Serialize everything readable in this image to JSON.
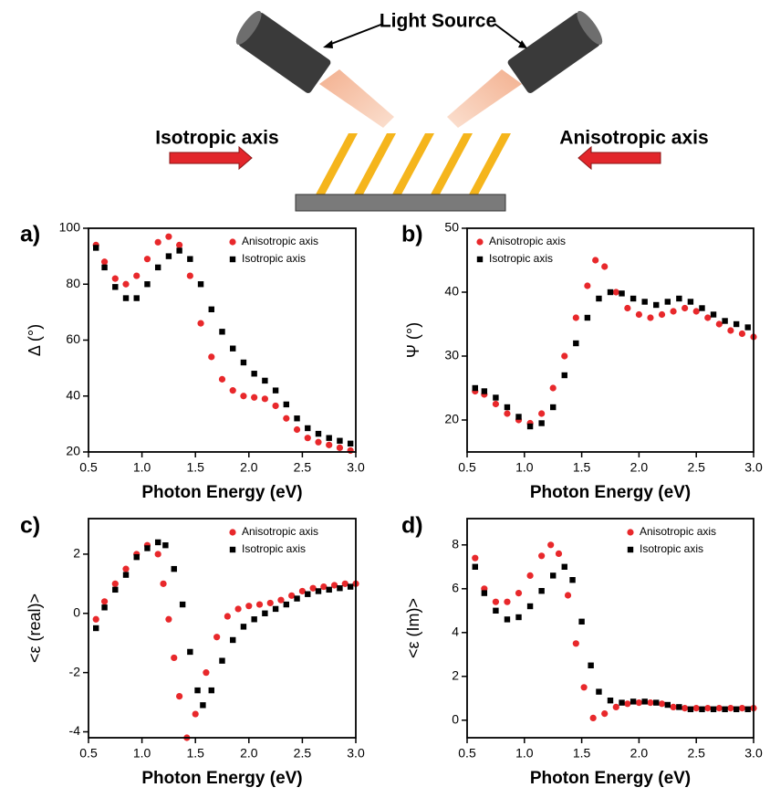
{
  "diagram": {
    "light_source": "Light Source",
    "isotropic_axis": "Isotropic axis",
    "anisotropic_axis": "Anisotropic axis"
  },
  "chart_data": [
    {
      "type": "scatter",
      "panel": "a)",
      "xlabel": "Photon Energy (eV)",
      "ylabel": "Δ (°)",
      "xlim": [
        0.5,
        3.0
      ],
      "xticks": [
        0.5,
        {
          "value": 1.0,
          "label": "1.0"
        },
        1.5,
        {
          "value": 2.0,
          "label": "2.0"
        },
        2.5,
        {
          "value": 3.0,
          "label": "3.0"
        }
      ],
      "ylim": [
        20,
        100
      ],
      "yticks": [
        20,
        40,
        60,
        80,
        100
      ],
      "legend": "upper right",
      "series": [
        {
          "name": "Anisotropic axis",
          "color": "#e8282b",
          "marker": "circle",
          "x": [
            0.57,
            0.65,
            0.75,
            0.85,
            0.95,
            1.05,
            1.15,
            1.25,
            1.35,
            1.45,
            1.55,
            1.65,
            1.75,
            1.85,
            1.95,
            2.05,
            2.15,
            2.25,
            2.35,
            2.45,
            2.55,
            2.65,
            2.75,
            2.85,
            2.95
          ],
          "values": [
            94,
            88,
            82,
            80,
            83,
            89,
            95,
            97,
            94,
            83,
            66,
            54,
            46,
            42,
            40,
            39.5,
            39,
            36.5,
            32,
            28,
            25,
            23.5,
            22.5,
            21.5,
            20.5
          ]
        },
        {
          "name": "Isotropic axis",
          "color": "#000000",
          "marker": "square",
          "x": [
            0.57,
            0.65,
            0.75,
            0.85,
            0.95,
            1.05,
            1.15,
            1.25,
            1.35,
            1.45,
            1.55,
            1.65,
            1.75,
            1.85,
            1.95,
            2.05,
            2.15,
            2.25,
            2.35,
            2.45,
            2.55,
            2.65,
            2.75,
            2.85,
            2.95
          ],
          "values": [
            93,
            86,
            79,
            75,
            75,
            80,
            86,
            90,
            92,
            89,
            80,
            71,
            63,
            57,
            52,
            48,
            45.5,
            42,
            37,
            32,
            28.5,
            26.5,
            25,
            24,
            23
          ]
        }
      ]
    },
    {
      "type": "scatter",
      "panel": "b)",
      "xlabel": "Photon Energy (eV)",
      "ylabel": "Ψ (°)",
      "xlim": [
        0.5,
        3.0
      ],
      "xticks": [
        0.5,
        {
          "value": 1.0,
          "label": "1.0"
        },
        1.5,
        {
          "value": 2.0,
          "label": "2.0"
        },
        2.5,
        {
          "value": 3.0,
          "label": "3.0"
        }
      ],
      "ylim": [
        15,
        50
      ],
      "yticks": [
        20,
        30,
        40,
        50
      ],
      "legend": "upper left",
      "series": [
        {
          "name": "Anisotropic axis",
          "color": "#e8282b",
          "marker": "circle",
          "x": [
            0.57,
            0.65,
            0.75,
            0.85,
            0.95,
            1.05,
            1.15,
            1.25,
            1.35,
            1.45,
            1.55,
            1.62,
            1.7,
            1.8,
            1.9,
            2.0,
            2.1,
            2.2,
            2.3,
            2.4,
            2.5,
            2.6,
            2.7,
            2.8,
            2.9,
            3.0
          ],
          "values": [
            24.5,
            24,
            22.5,
            21,
            20,
            19.5,
            21,
            25,
            30,
            36,
            41,
            45,
            44,
            40,
            37.5,
            36.5,
            36,
            36.5,
            37,
            37.5,
            37,
            36,
            35,
            34,
            33.5,
            33
          ]
        },
        {
          "name": "Isotropic axis",
          "color": "#000000",
          "marker": "square",
          "x": [
            0.57,
            0.65,
            0.75,
            0.85,
            0.95,
            1.05,
            1.15,
            1.25,
            1.35,
            1.45,
            1.55,
            1.65,
            1.75,
            1.85,
            1.95,
            2.05,
            2.15,
            2.25,
            2.35,
            2.45,
            2.55,
            2.65,
            2.75,
            2.85,
            2.95
          ],
          "values": [
            25,
            24.5,
            23.5,
            22,
            20.5,
            19,
            19.5,
            22,
            27,
            32,
            36,
            39,
            40,
            39.8,
            39,
            38.5,
            38,
            38.5,
            39,
            38.5,
            37.5,
            36.5,
            35.5,
            35,
            34.5
          ]
        }
      ]
    },
    {
      "type": "scatter",
      "panel": "c)",
      "xlabel": "Photon Energy (eV)",
      "ylabel": "<ε (real)>",
      "xlim": [
        0.5,
        3.0
      ],
      "xticks": [
        0.5,
        {
          "value": 1.0,
          "label": "1.0"
        },
        1.5,
        {
          "value": 2.0,
          "label": "2.0"
        },
        2.5,
        {
          "value": 3.0,
          "label": "3.0"
        }
      ],
      "ylim": [
        -4.2,
        3.2
      ],
      "yticks": [
        -4,
        -2,
        0,
        2
      ],
      "legend": "upper right",
      "series": [
        {
          "name": "Anisotropic axis",
          "color": "#e8282b",
          "marker": "circle",
          "x": [
            0.57,
            0.65,
            0.75,
            0.85,
            0.95,
            1.05,
            1.15,
            1.2,
            1.25,
            1.3,
            1.35,
            1.42,
            1.5,
            1.6,
            1.7,
            1.8,
            1.9,
            2.0,
            2.1,
            2.2,
            2.3,
            2.4,
            2.5,
            2.6,
            2.7,
            2.8,
            2.9,
            3.0
          ],
          "values": [
            -0.2,
            0.4,
            1.0,
            1.5,
            2.0,
            2.3,
            2.0,
            1.0,
            -0.2,
            -1.5,
            -2.8,
            -4.2,
            -3.4,
            -2.0,
            -0.8,
            -0.1,
            0.15,
            0.25,
            0.3,
            0.35,
            0.45,
            0.6,
            0.75,
            0.85,
            0.9,
            0.95,
            1.0,
            1.0
          ]
        },
        {
          "name": "Isotropic axis",
          "color": "#000000",
          "marker": "square",
          "x": [
            0.57,
            0.65,
            0.75,
            0.85,
            0.95,
            1.05,
            1.15,
            1.22,
            1.3,
            1.38,
            1.45,
            1.52,
            1.57,
            1.65,
            1.75,
            1.85,
            1.95,
            2.05,
            2.15,
            2.25,
            2.35,
            2.45,
            2.55,
            2.65,
            2.75,
            2.85,
            2.95
          ],
          "values": [
            -0.5,
            0.2,
            0.8,
            1.3,
            1.9,
            2.2,
            2.4,
            2.3,
            1.5,
            0.3,
            -1.3,
            -2.6,
            -3.1,
            -2.6,
            -1.6,
            -0.9,
            -0.45,
            -0.2,
            0.0,
            0.15,
            0.3,
            0.5,
            0.65,
            0.75,
            0.8,
            0.85,
            0.9
          ]
        }
      ]
    },
    {
      "type": "scatter",
      "panel": "d)",
      "xlabel": "Photon Energy (eV)",
      "ylabel": "<ε (Im)>",
      "xlim": [
        0.5,
        3.0
      ],
      "xticks": [
        0.5,
        {
          "value": 1.0,
          "label": "1.0"
        },
        1.5,
        {
          "value": 2.0,
          "label": "2.0"
        },
        2.5,
        {
          "value": 3.0,
          "label": "3.0"
        }
      ],
      "ylim": [
        -0.8,
        9.2
      ],
      "yticks": [
        0,
        2,
        4,
        6,
        8
      ],
      "legend": "upper right",
      "series": [
        {
          "name": "Anisotropic axis",
          "color": "#e8282b",
          "marker": "circle",
          "x": [
            0.57,
            0.65,
            0.75,
            0.85,
            0.95,
            1.05,
            1.15,
            1.23,
            1.3,
            1.38,
            1.45,
            1.52,
            1.6,
            1.7,
            1.8,
            1.9,
            2.0,
            2.1,
            2.2,
            2.3,
            2.4,
            2.5,
            2.6,
            2.7,
            2.8,
            2.9,
            3.0
          ],
          "values": [
            7.4,
            6.0,
            5.4,
            5.4,
            5.8,
            6.6,
            7.5,
            8.0,
            7.6,
            5.7,
            3.5,
            1.5,
            0.1,
            0.3,
            0.6,
            0.75,
            0.8,
            0.8,
            0.75,
            0.6,
            0.55,
            0.55,
            0.55,
            0.55,
            0.55,
            0.55,
            0.55
          ]
        },
        {
          "name": "Isotropic axis",
          "color": "#000000",
          "marker": "square",
          "x": [
            0.57,
            0.65,
            0.75,
            0.85,
            0.95,
            1.05,
            1.15,
            1.25,
            1.35,
            1.42,
            1.5,
            1.58,
            1.65,
            1.75,
            1.85,
            1.95,
            2.05,
            2.15,
            2.25,
            2.35,
            2.45,
            2.55,
            2.65,
            2.75,
            2.85,
            2.95
          ],
          "values": [
            7.0,
            5.8,
            5.0,
            4.6,
            4.7,
            5.2,
            5.9,
            6.6,
            7.0,
            6.4,
            4.5,
            2.5,
            1.3,
            0.9,
            0.8,
            0.85,
            0.85,
            0.8,
            0.7,
            0.6,
            0.5,
            0.5,
            0.5,
            0.5,
            0.5,
            0.5
          ]
        }
      ]
    }
  ]
}
